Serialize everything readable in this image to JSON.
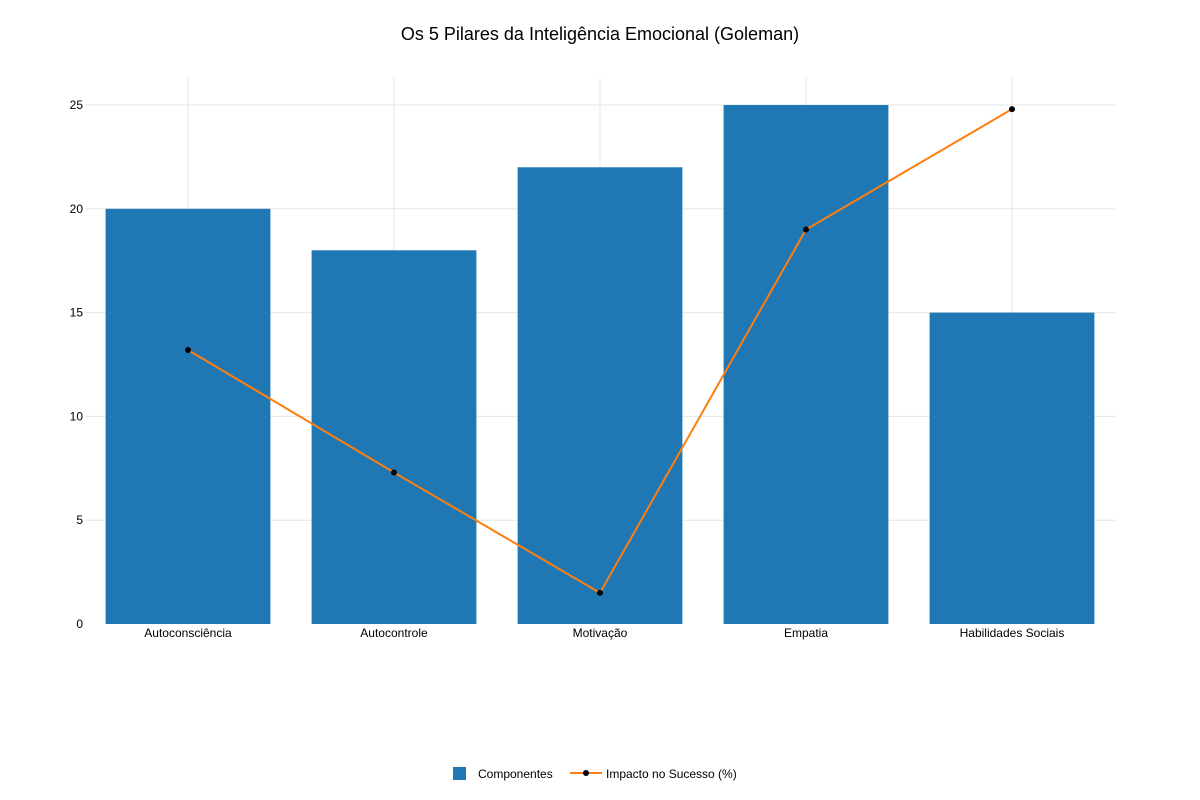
{
  "chart_data": {
    "type": "bar",
    "title": "Os 5 Pilares da Inteligência Emocional (Goleman)",
    "xlabel": "",
    "ylabel": "",
    "categories": [
      "Autoconsciência",
      "Autocontrole",
      "Motivação",
      "Empatia",
      "Habilidades Sociais"
    ],
    "ylim": [
      0,
      26.3
    ],
    "yticks": [
      0,
      5,
      10,
      15,
      20,
      25
    ],
    "grid": true,
    "legend_position": "bottom-center",
    "series": [
      {
        "name": "Componentes",
        "type": "bar",
        "color": "#1f77b4",
        "values": [
          20,
          18,
          22,
          25,
          15
        ]
      },
      {
        "name": "Impacto no Sucesso (%)",
        "type": "line",
        "color": "#ff7f0e",
        "marker_color": "#000000",
        "values": [
          13.2,
          7.3,
          1.5,
          19.0,
          24.8
        ]
      }
    ]
  }
}
